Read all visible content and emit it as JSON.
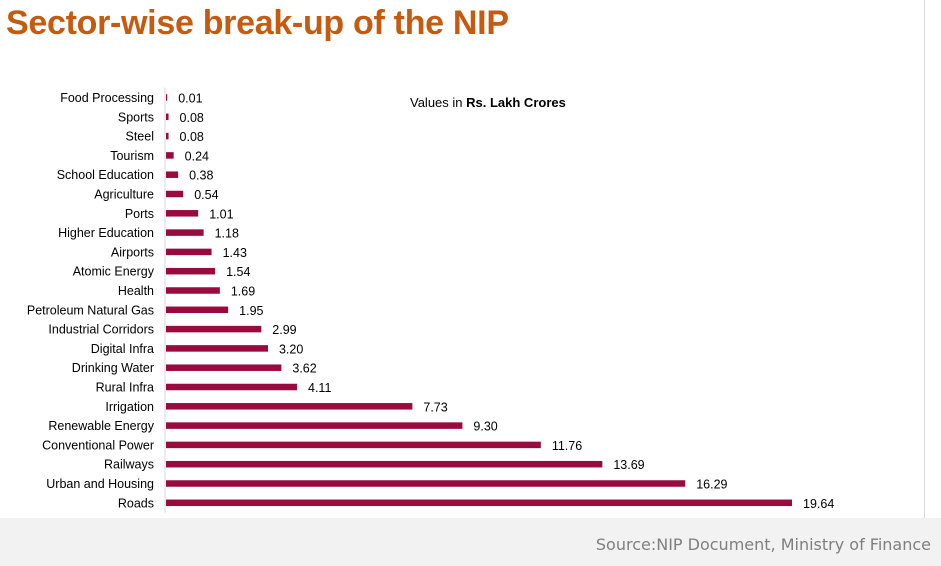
{
  "title": "Sector-wise break-up of the NIP",
  "source": "Source:NIP Document, Ministry of Finance",
  "colors": {
    "title": "#c55a11",
    "bar": "#9a0b3d",
    "footer_bg": "#f2f2f2",
    "source_text": "#7f7f7f"
  },
  "chart_data": {
    "type": "bar",
    "orientation": "horizontal",
    "title": "",
    "units_prefix": "Values in ",
    "units_bold": "Rs. Lakh Crores",
    "categories": [
      "Food Processing",
      "Sports",
      "Steel",
      "Tourism",
      "School Education",
      "Agriculture",
      "Ports",
      "Higher Education",
      "Airports",
      "Atomic Energy",
      "Health",
      "Petroleum Natural Gas",
      "Industrial Corridors",
      "Digital Infra",
      "Drinking Water",
      "Rural Infra",
      "Irrigation",
      "Renewable Energy",
      "Conventional Power",
      "Railways",
      "Urban and Housing",
      "Roads"
    ],
    "values": [
      0.01,
      0.08,
      0.08,
      0.24,
      0.38,
      0.54,
      1.01,
      1.18,
      1.43,
      1.54,
      1.69,
      1.95,
      2.99,
      3.2,
      3.62,
      4.11,
      7.73,
      9.3,
      11.76,
      13.69,
      16.29,
      19.64
    ],
    "value_labels": [
      "0.01",
      "0.08",
      "0.08",
      "0.24",
      "0.38",
      "0.54",
      "1.01",
      "1.18",
      "1.43",
      "1.54",
      "1.69",
      "1.95",
      "2.99",
      "3.20",
      "3.62",
      "4.11",
      "7.73",
      "9.30",
      "11.76",
      "13.69",
      "16.29",
      "19.64"
    ],
    "xlim": [
      0,
      20
    ],
    "grid": false,
    "legend": "none"
  }
}
